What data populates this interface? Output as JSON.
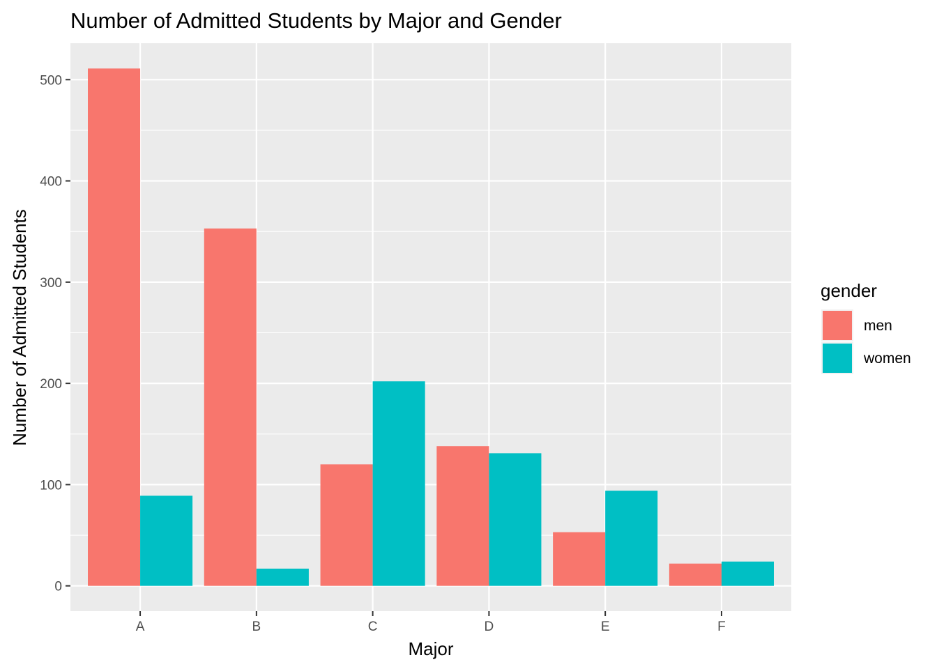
{
  "chart_data": {
    "type": "bar",
    "title": "Number of Admitted Students by Major and Gender",
    "xlabel": "Major",
    "ylabel": "Number of Admitted Students",
    "categories": [
      "A",
      "B",
      "C",
      "D",
      "E",
      "F"
    ],
    "series": [
      {
        "name": "men",
        "color": "#F8766D",
        "values": [
          511,
          353,
          120,
          138,
          53,
          22
        ]
      },
      {
        "name": "women",
        "color": "#00BFC4",
        "values": [
          89,
          17,
          202,
          131,
          94,
          24
        ]
      }
    ],
    "ylim": [
      -25,
      536
    ],
    "yticks": [
      0,
      100,
      200,
      300,
      400,
      500
    ],
    "grid": true,
    "legend": {
      "title": "gender",
      "position": "right"
    }
  }
}
